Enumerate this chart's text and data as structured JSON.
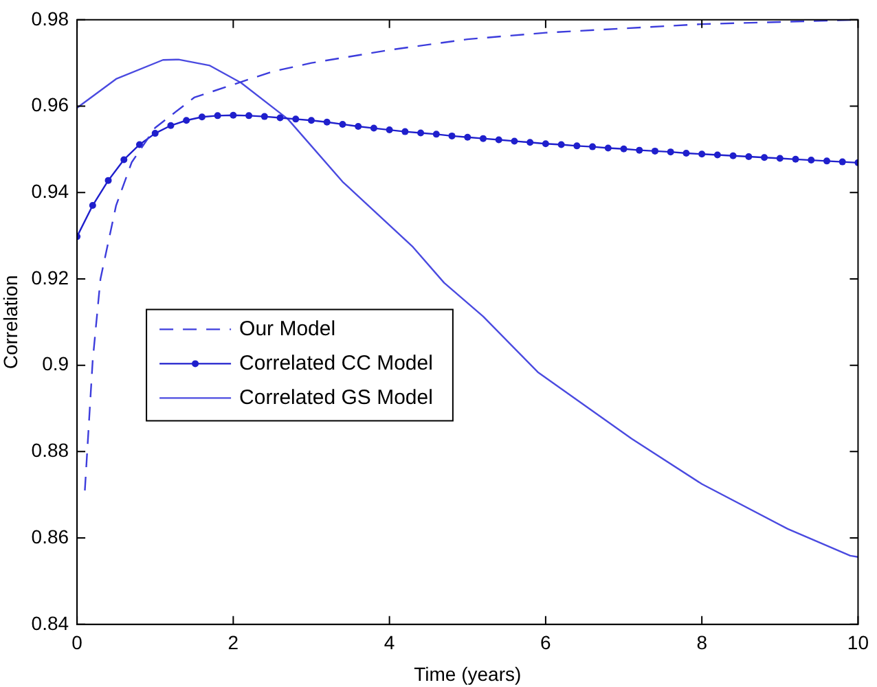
{
  "chart_data": {
    "type": "line",
    "xlabel": "Time (years)",
    "ylabel": "Correlation",
    "xlim": [
      0,
      10
    ],
    "xticks": [
      0,
      2,
      4,
      6,
      8,
      10
    ],
    "ylim": [
      0.84,
      0.98
    ],
    "yticks": [
      0.84,
      0.86,
      0.88,
      0.9,
      0.92,
      0.94,
      0.96,
      0.98
    ],
    "grid": false,
    "legend": "left",
    "series": [
      {
        "name": "Our Model",
        "color": "#3c3cdc",
        "line_style": "dashed",
        "marker": "none",
        "x": [
          0.1,
          0.2,
          0.3,
          0.5,
          0.7,
          1,
          1.5,
          2,
          2.5,
          3,
          3.5,
          4,
          5,
          6,
          7,
          8,
          9,
          10
        ],
        "values": [
          0.871,
          0.901,
          0.92,
          0.937,
          0.947,
          0.955,
          0.962,
          0.965,
          0.968,
          0.97,
          0.9715,
          0.973,
          0.9755,
          0.977,
          0.978,
          0.979,
          0.9795,
          0.98
        ]
      },
      {
        "name": "Correlated CC Model",
        "color": "#1f1fcc",
        "line_style": "solid",
        "marker": "circle",
        "x": [
          0,
          0.2,
          0.4,
          0.6,
          0.8,
          1,
          1.2,
          1.4,
          1.6,
          1.8,
          2,
          2.2,
          2.4,
          2.6,
          2.8,
          3,
          3.2,
          3.4,
          3.6,
          3.8,
          4,
          4.2,
          4.4,
          4.6,
          4.8,
          5,
          5.2,
          5.4,
          5.6,
          5.8,
          6,
          6.2,
          6.4,
          6.6,
          6.8,
          7,
          7.2,
          7.4,
          7.6,
          7.8,
          8,
          8.2,
          8.4,
          8.6,
          8.8,
          9,
          9.2,
          9.4,
          9.6,
          9.8,
          10
        ],
        "values": [
          0.9298,
          0.937,
          0.9428,
          0.9476,
          0.9511,
          0.9537,
          0.9555,
          0.9567,
          0.9575,
          0.9578,
          0.9579,
          0.9578,
          0.9576,
          0.9573,
          0.957,
          0.9567,
          0.9563,
          0.9558,
          0.9553,
          0.9549,
          0.9545,
          0.9541,
          0.9538,
          0.9535,
          0.9531,
          0.9528,
          0.9525,
          0.9522,
          0.9519,
          0.9516,
          0.9513,
          0.9511,
          0.9508,
          0.9506,
          0.9503,
          0.9501,
          0.9498,
          0.9496,
          0.9494,
          0.9491,
          0.9489,
          0.9487,
          0.9485,
          0.9483,
          0.9481,
          0.9479,
          0.9477,
          0.9475,
          0.9473,
          0.9471,
          0.9469
        ]
      },
      {
        "name": "Correlated GS Model",
        "color": "#4a4ae0",
        "line_style": "solid",
        "marker": "none",
        "x": [
          0,
          0.5,
          1.1,
          1.3,
          1.7,
          2.1,
          2.7,
          3.4,
          4.3,
          4.7,
          5.2,
          5.9,
          7.1,
          8,
          9.1,
          9.9,
          10
        ],
        "values": [
          0.9596,
          0.9663,
          0.9707,
          0.9708,
          0.9694,
          0.9654,
          0.957,
          0.9425,
          0.9274,
          0.9191,
          0.9113,
          0.8984,
          0.883,
          0.8725,
          0.8621,
          0.8559,
          0.8556
        ]
      }
    ]
  }
}
